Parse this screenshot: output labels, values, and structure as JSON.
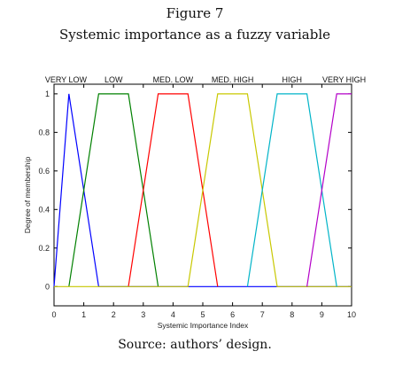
{
  "figure": {
    "number": "Figure 7",
    "caption": "Systemic importance as a fuzzy variable",
    "source": "Source: authors’ design."
  },
  "chart_data": {
    "type": "line",
    "title": "",
    "xlabel": "Systemic Importance Index",
    "ylabel": "Degree of membership",
    "xlim": [
      0,
      10
    ],
    "ylim": [
      -0.1,
      1.05
    ],
    "xticks": [
      0,
      1,
      2,
      3,
      4,
      5,
      6,
      7,
      8,
      9,
      10
    ],
    "yticks": [
      0,
      0.2,
      0.4,
      0.6,
      0.8,
      1
    ],
    "ytick_labels": [
      "0",
      "0.2",
      "0.4",
      "0.6",
      "0.8",
      "1"
    ],
    "grid": false,
    "series": [
      {
        "name": "VERY LOW",
        "color": "#0000ff",
        "points": [
          [
            0,
            0
          ],
          [
            0.5,
            1
          ],
          [
            1.5,
            0
          ],
          [
            10,
            0
          ]
        ],
        "label_x": 0.4
      },
      {
        "name": "LOW",
        "color": "#008000",
        "points": [
          [
            0.5,
            0
          ],
          [
            1.5,
            1
          ],
          [
            2.5,
            1
          ],
          [
            3.5,
            0
          ]
        ],
        "label_x": 2.0
      },
      {
        "name": "MED. LOW",
        "color": "#ff0000",
        "points": [
          [
            2.5,
            0
          ],
          [
            3.5,
            1
          ],
          [
            4.5,
            1
          ],
          [
            5.5,
            0
          ]
        ],
        "label_x": 4.0
      },
      {
        "name": "MED. HIGH",
        "color": "#c8c800",
        "points": [
          [
            0,
            0
          ],
          [
            4.5,
            0
          ],
          [
            5.5,
            1
          ],
          [
            6.5,
            1
          ],
          [
            7.5,
            0
          ],
          [
            10,
            0
          ]
        ],
        "label_x": 6.0
      },
      {
        "name": "HIGH",
        "color": "#00b4c8",
        "points": [
          [
            6.5,
            0
          ],
          [
            7.5,
            1
          ],
          [
            8.5,
            1
          ],
          [
            9.5,
            0
          ]
        ],
        "label_x": 8.0
      },
      {
        "name": "VERY HIGH",
        "color": "#b400c8",
        "points": [
          [
            8.5,
            0
          ],
          [
            9.5,
            1
          ],
          [
            10,
            1
          ]
        ],
        "label_x": 9.75
      }
    ]
  }
}
